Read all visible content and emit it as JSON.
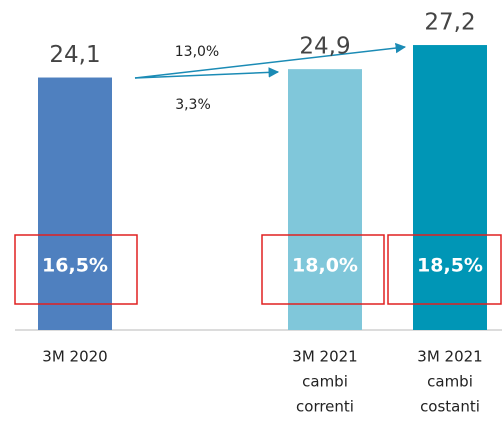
{
  "chart_data": {
    "type": "bar",
    "categories": [
      [
        "3M 2020"
      ],
      [
        "3M 2021",
        "cambi",
        "correnti"
      ],
      [
        "3M 2021",
        "cambi",
        "costanti"
      ]
    ],
    "values": [
      24.1,
      24.9,
      27.2
    ],
    "value_labels": [
      "24,1",
      "24,9",
      "27,2"
    ],
    "colors": [
      "#4f80bf",
      "#80c7da",
      "#0096b6"
    ],
    "inner_labels": [
      "16,5%",
      "18,0%",
      "18,5%"
    ],
    "annotations": [
      "13,0%",
      "3,3%"
    ],
    "ylim": [
      0,
      31.5
    ]
  }
}
